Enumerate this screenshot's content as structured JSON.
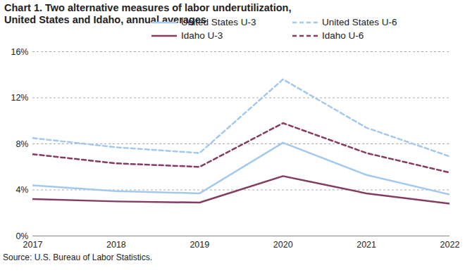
{
  "chart_data": {
    "type": "line",
    "title": "Chart 1. Two alternative measures of labor underutilization, United States and Idaho, annual averages",
    "source": "Source: U.S. Bureau of Labor Statistics.",
    "x": [
      2017,
      2018,
      2019,
      2020,
      2021,
      2022
    ],
    "series": [
      {
        "name": "United States U-3",
        "color": "#a3c9ee",
        "line_style": "solid",
        "values": [
          4.4,
          3.9,
          3.7,
          8.1,
          5.3,
          3.6
        ]
      },
      {
        "name": "United States U-6",
        "color": "#a3c9ee",
        "line_style": "dashed",
        "values": [
          8.5,
          7.7,
          7.2,
          13.6,
          9.4,
          6.9
        ]
      },
      {
        "name": "Idaho U-3",
        "color": "#843c61",
        "line_style": "solid",
        "values": [
          3.2,
          3.0,
          2.9,
          5.2,
          3.7,
          2.8
        ]
      },
      {
        "name": "Idaho U-6",
        "color": "#843c61",
        "line_style": "dashed",
        "values": [
          7.1,
          6.3,
          6.0,
          9.8,
          7.2,
          5.5
        ]
      }
    ],
    "xlim": [
      2017,
      2022
    ],
    "xticks": [
      2017,
      2018,
      2019,
      2020,
      2021,
      2022
    ],
    "ylim": [
      0,
      16
    ],
    "yticks": [
      {
        "value": 0,
        "label": "0%"
      },
      {
        "value": 4,
        "label": "4%"
      },
      {
        "value": 8,
        "label": "8%"
      },
      {
        "value": 12,
        "label": "12%"
      },
      {
        "value": 16,
        "label": "16%"
      }
    ],
    "grid": true,
    "legend": "top"
  }
}
